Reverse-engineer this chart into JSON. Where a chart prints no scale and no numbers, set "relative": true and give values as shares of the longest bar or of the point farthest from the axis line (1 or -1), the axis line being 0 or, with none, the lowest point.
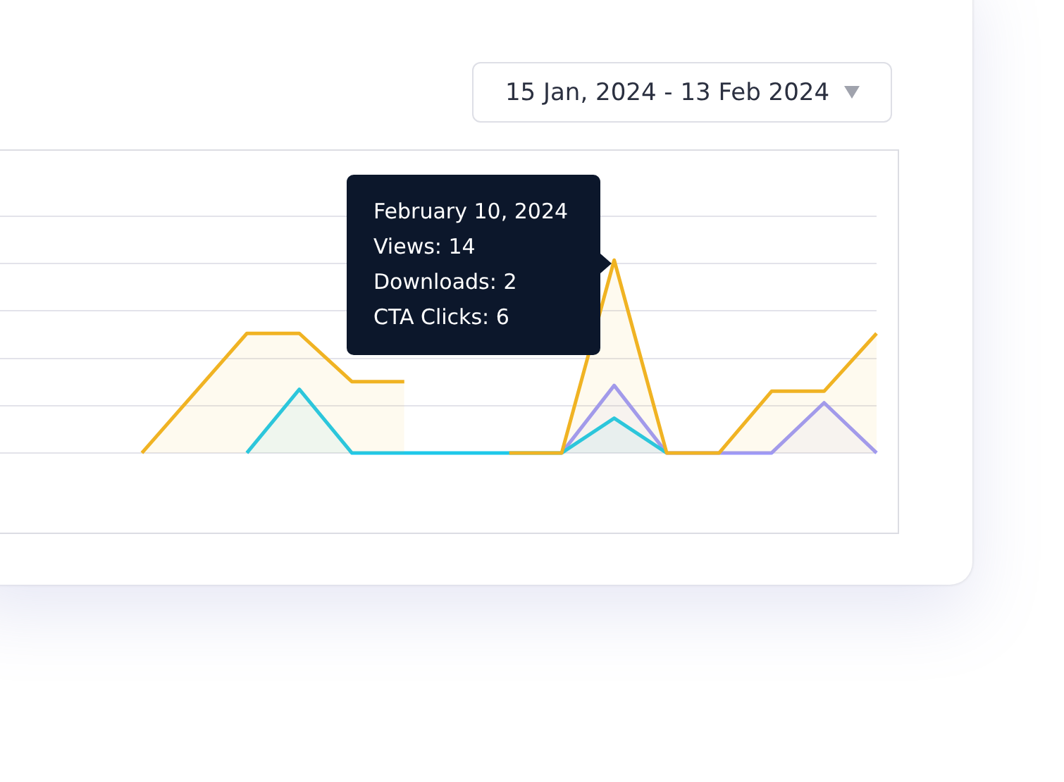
{
  "chart_data": {
    "type": "area",
    "relative": true,
    "grid": "y",
    "categories": [
      null,
      null,
      null,
      null,
      null,
      null,
      null,
      null,
      null,
      null,
      null,
      null,
      null,
      null,
      null,
      null,
      null,
      null
    ],
    "series": [
      {
        "color": "#f0b323",
        "values": [
          null,
          null,
          null,
          0,
          0.31,
          0.62,
          0.62,
          0.37,
          0.37,
          null,
          0,
          0,
          1,
          0,
          0,
          0.32,
          0.32,
          0.62
        ]
      },
      {
        "color": "#1ec8ea",
        "values": [
          null,
          null,
          null,
          null,
          null,
          0,
          0.33,
          0,
          0,
          0,
          0,
          0,
          0.18,
          0,
          null,
          null,
          null,
          null
        ]
      },
      {
        "color": "#9c98fa",
        "values": [
          null,
          null,
          null,
          null,
          null,
          null,
          null,
          null,
          null,
          null,
          null,
          0,
          0.35,
          0,
          0,
          0,
          0.26,
          0
        ]
      }
    ],
    "annotations": [
      "15 Jan, 2024 - 13 Feb 2024",
      "February 10, 2024",
      "Views: 14",
      "Downloads: 2",
      "CTA Clicks: 6"
    ]
  }
}
